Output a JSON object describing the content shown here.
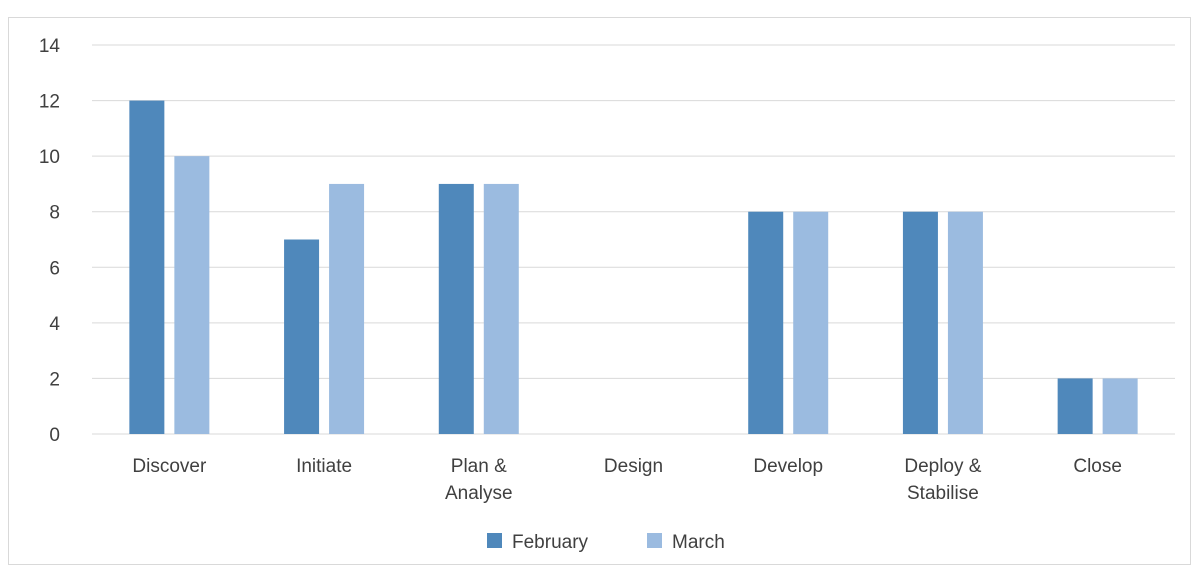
{
  "chart_data": {
    "type": "bar",
    "title": "",
    "xlabel": "",
    "ylabel": "",
    "ylim": [
      0,
      14
    ],
    "yticks": [
      0,
      2,
      4,
      6,
      8,
      10,
      12,
      14
    ],
    "grid": true,
    "legend_position": "bottom",
    "categories": [
      [
        "Discover"
      ],
      [
        "Initiate"
      ],
      [
        "Plan &",
        "Analyse"
      ],
      [
        "Design"
      ],
      [
        "Develop"
      ],
      [
        "Deploy &",
        "Stabilise"
      ],
      [
        "Close"
      ]
    ],
    "series": [
      {
        "name": "February",
        "color": "#4f88bb",
        "values": [
          12,
          7,
          9,
          0,
          8,
          8,
          2
        ]
      },
      {
        "name": "March",
        "color": "#9bbbe0",
        "values": [
          10,
          9,
          9,
          0,
          8,
          8,
          2
        ]
      }
    ]
  }
}
